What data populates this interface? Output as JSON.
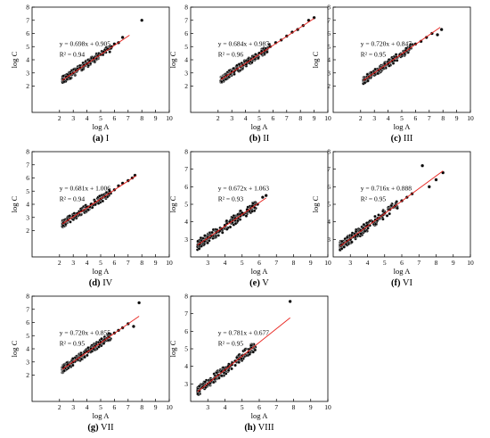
{
  "figure": {
    "background": "#ffffff",
    "point_color": "#000000",
    "fit_color": "#e8231e",
    "marker_color": "#c81e1e"
  },
  "chart_data": [
    {
      "type": "scatter",
      "panel_label": "(a) I",
      "label_id": "(a)",
      "label_text": " I",
      "xlabel": "log A",
      "ylabel": "log C",
      "xlim": [
        0,
        10
      ],
      "ylim": [
        0,
        8
      ],
      "xticks": [
        2,
        3,
        4,
        5,
        6,
        7,
        8,
        9,
        10
      ],
      "yticks": [
        2,
        3,
        4,
        5,
        6,
        7,
        8
      ],
      "equation": "y = 0.698x + 0.905",
      "r2": "R² = 0.94",
      "fit": {
        "slope": 0.698,
        "intercept": 0.905,
        "x_range": [
          2.2,
          7.1
        ]
      },
      "points": [
        [
          2.3,
          2.5
        ],
        [
          2.5,
          2.7
        ],
        [
          2.8,
          2.9
        ],
        [
          3.0,
          3.0
        ],
        [
          3.2,
          3.2
        ],
        [
          3.5,
          3.4
        ],
        [
          3.8,
          3.6
        ],
        [
          4.0,
          3.7
        ],
        [
          4.2,
          3.9
        ],
        [
          4.5,
          4.1
        ],
        [
          4.8,
          4.3
        ],
        [
          5.0,
          4.4
        ],
        [
          5.2,
          4.6
        ],
        [
          5.5,
          4.8
        ],
        [
          5.8,
          5.0
        ],
        [
          6.0,
          5.2
        ],
        [
          6.3,
          5.3
        ],
        [
          6.6,
          5.7
        ],
        [
          8.0,
          7.0
        ]
      ]
    },
    {
      "type": "scatter",
      "panel_label": "(b) II",
      "label_id": "(b)",
      "label_text": " II",
      "xlabel": "log A",
      "ylabel": "log C",
      "xlim": [
        0,
        10
      ],
      "ylim": [
        0,
        8
      ],
      "xticks": [
        2,
        3,
        4,
        5,
        6,
        7,
        8,
        9,
        10
      ],
      "yticks": [
        2,
        3,
        4,
        5,
        6,
        7,
        8
      ],
      "equation": "y = 0.684x + 0.987",
      "r2": "R² = 0.96",
      "fit": {
        "slope": 0.684,
        "intercept": 0.987,
        "x_range": [
          2.2,
          9.0
        ]
      },
      "points": [
        [
          2.3,
          2.6
        ],
        [
          2.6,
          2.8
        ],
        [
          3.0,
          3.1
        ],
        [
          3.4,
          3.3
        ],
        [
          3.8,
          3.6
        ],
        [
          4.2,
          3.9
        ],
        [
          4.6,
          4.2
        ],
        [
          5.0,
          4.5
        ],
        [
          5.4,
          4.7
        ],
        [
          5.8,
          5.0
        ],
        [
          6.2,
          5.3
        ],
        [
          6.6,
          5.5
        ],
        [
          7.0,
          5.8
        ],
        [
          7.4,
          6.1
        ],
        [
          7.8,
          6.3
        ],
        [
          8.2,
          6.6
        ],
        [
          8.6,
          7.0
        ],
        [
          9.0,
          7.2
        ]
      ]
    },
    {
      "type": "scatter",
      "panel_label": "(c) III",
      "label_id": "(c)",
      "label_text": " III",
      "xlabel": "log A",
      "ylabel": "log C",
      "xlim": [
        0,
        10
      ],
      "ylim": [
        0,
        8
      ],
      "xticks": [
        2,
        3,
        4,
        5,
        6,
        7,
        8,
        9,
        10
      ],
      "yticks": [
        2,
        3,
        4,
        5,
        6,
        7,
        8
      ],
      "equation": "y = 0.720x + 0.847",
      "r2": "R² = 0.95",
      "fit": {
        "slope": 0.72,
        "intercept": 0.847,
        "x_range": [
          2.2,
          7.8
        ]
      },
      "points": [
        [
          2.3,
          2.5
        ],
        [
          2.6,
          2.7
        ],
        [
          3.0,
          3.0
        ],
        [
          3.3,
          3.2
        ],
        [
          3.6,
          3.4
        ],
        [
          4.0,
          3.7
        ],
        [
          4.3,
          3.9
        ],
        [
          4.6,
          4.2
        ],
        [
          5.0,
          4.4
        ],
        [
          5.3,
          4.7
        ],
        [
          5.6,
          4.9
        ],
        [
          6.0,
          5.2
        ],
        [
          6.4,
          5.4
        ],
        [
          6.8,
          5.7
        ],
        [
          7.2,
          6.0
        ],
        [
          7.6,
          5.9
        ],
        [
          7.9,
          6.3
        ]
      ]
    },
    {
      "type": "scatter",
      "panel_label": "(d) IV",
      "label_id": "(d)",
      "label_text": " IV",
      "xlabel": "log A",
      "ylabel": "log C",
      "xlim": [
        0,
        10
      ],
      "ylim": [
        0,
        8
      ],
      "xticks": [
        2,
        3,
        4,
        5,
        6,
        7,
        8,
        9,
        10
      ],
      "yticks": [
        2,
        3,
        4,
        5,
        6,
        7,
        8
      ],
      "equation": "y = 0.681x + 1.006",
      "r2": "R² = 0.94",
      "fit": {
        "slope": 0.681,
        "intercept": 1.006,
        "x_range": [
          2.2,
          7.6
        ]
      },
      "points": [
        [
          2.3,
          2.6
        ],
        [
          2.6,
          2.8
        ],
        [
          3.0,
          3.1
        ],
        [
          3.3,
          3.3
        ],
        [
          3.6,
          3.5
        ],
        [
          4.0,
          3.8
        ],
        [
          4.3,
          4.0
        ],
        [
          4.6,
          4.2
        ],
        [
          5.0,
          4.4
        ],
        [
          5.3,
          4.6
        ],
        [
          5.6,
          4.8
        ],
        [
          6.0,
          5.1
        ],
        [
          6.3,
          5.4
        ],
        [
          6.6,
          5.6
        ],
        [
          7.0,
          5.8
        ],
        [
          7.3,
          6.0
        ],
        [
          7.5,
          6.2
        ]
      ]
    },
    {
      "type": "scatter",
      "panel_label": "(e) V",
      "label_id": "(e)",
      "label_text": " V",
      "xlabel": "log A",
      "ylabel": "log C",
      "xlim": [
        2,
        10
      ],
      "ylim": [
        2,
        8
      ],
      "xticks": [
        3,
        4,
        5,
        6,
        7,
        8,
        9,
        10
      ],
      "yticks": [
        3,
        4,
        5,
        6,
        7,
        8
      ],
      "equation": "y = 0.672x + 1.063",
      "r2": "R² = 0.93",
      "fit": {
        "slope": 0.672,
        "intercept": 1.063,
        "x_range": [
          2.4,
          6.4
        ]
      },
      "points": [
        [
          2.5,
          2.7
        ],
        [
          2.8,
          2.9
        ],
        [
          3.0,
          3.1
        ],
        [
          3.2,
          3.2
        ],
        [
          3.5,
          3.4
        ],
        [
          3.8,
          3.6
        ],
        [
          4.0,
          3.8
        ],
        [
          4.3,
          4.0
        ],
        [
          4.6,
          4.2
        ],
        [
          5.0,
          4.5
        ],
        [
          5.3,
          4.7
        ],
        [
          5.6,
          4.9
        ],
        [
          5.9,
          5.0
        ],
        [
          6.2,
          5.4
        ],
        [
          6.4,
          5.5
        ]
      ]
    },
    {
      "type": "scatter",
      "panel_label": "(f) VI",
      "label_id": "(f)",
      "label_text": " VI",
      "xlabel": "log A",
      "ylabel": "log C",
      "xlim": [
        2,
        10
      ],
      "ylim": [
        2,
        8
      ],
      "xticks": [
        3,
        4,
        5,
        6,
        7,
        8,
        9,
        10
      ],
      "yticks": [
        3,
        4,
        5,
        6,
        7,
        8
      ],
      "equation": "y = 0.716x + 0.888",
      "r2": "R² = 0.95",
      "fit": {
        "slope": 0.716,
        "intercept": 0.888,
        "x_range": [
          2.4,
          8.4
        ]
      },
      "points": [
        [
          2.5,
          2.7
        ],
        [
          2.8,
          2.9
        ],
        [
          3.0,
          3.0
        ],
        [
          3.3,
          3.2
        ],
        [
          3.6,
          3.5
        ],
        [
          4.0,
          3.8
        ],
        [
          4.3,
          4.0
        ],
        [
          4.6,
          4.2
        ],
        [
          5.0,
          4.5
        ],
        [
          5.3,
          4.7
        ],
        [
          5.6,
          4.9
        ],
        [
          6.0,
          5.2
        ],
        [
          6.3,
          5.4
        ],
        [
          6.6,
          5.6
        ],
        [
          7.2,
          7.2
        ],
        [
          7.6,
          6.0
        ],
        [
          8.0,
          6.4
        ],
        [
          8.4,
          6.8
        ]
      ]
    },
    {
      "type": "scatter",
      "panel_label": "(g) VII",
      "label_id": "(g)",
      "label_text": " VII",
      "xlabel": "log A",
      "ylabel": "log C",
      "xlim": [
        0,
        10
      ],
      "ylim": [
        0,
        8
      ],
      "xticks": [
        2,
        3,
        4,
        5,
        6,
        7,
        8,
        9,
        10
      ],
      "yticks": [
        2,
        3,
        4,
        5,
        6,
        7,
        8
      ],
      "equation": "y = 0.720x + 0.855",
      "r2": "R² = 0.95",
      "fit": {
        "slope": 0.72,
        "intercept": 0.855,
        "x_range": [
          2.2,
          7.8
        ]
      },
      "points": [
        [
          2.3,
          2.6
        ],
        [
          2.6,
          2.8
        ],
        [
          3.0,
          3.0
        ],
        [
          3.3,
          3.2
        ],
        [
          3.6,
          3.5
        ],
        [
          4.0,
          3.8
        ],
        [
          4.3,
          4.0
        ],
        [
          4.6,
          4.2
        ],
        [
          5.0,
          4.5
        ],
        [
          5.3,
          4.7
        ],
        [
          5.6,
          4.9
        ],
        [
          6.0,
          5.2
        ],
        [
          6.3,
          5.4
        ],
        [
          6.6,
          5.6
        ],
        [
          7.0,
          5.9
        ],
        [
          7.4,
          5.7
        ],
        [
          7.8,
          7.5
        ]
      ]
    },
    {
      "type": "scatter",
      "panel_label": "(h) VIII",
      "label_id": "(h)",
      "label_text": " VIII",
      "xlabel": "log A",
      "ylabel": "log C",
      "xlim": [
        2,
        10
      ],
      "ylim": [
        2,
        8
      ],
      "xticks": [
        3,
        4,
        5,
        6,
        7,
        8,
        9,
        10
      ],
      "yticks": [
        3,
        4,
        5,
        6,
        7,
        8
      ],
      "equation": "y = 0.781x + 0.677",
      "r2": "R² = 0.95",
      "fit": {
        "slope": 0.781,
        "intercept": 0.677,
        "x_range": [
          2.4,
          7.8
        ]
      },
      "points": [
        [
          2.5,
          2.6
        ],
        [
          2.7,
          2.8
        ],
        [
          3.0,
          3.0
        ],
        [
          3.2,
          3.2
        ],
        [
          3.4,
          3.3
        ],
        [
          3.6,
          3.5
        ],
        [
          3.8,
          3.7
        ],
        [
          4.0,
          3.8
        ],
        [
          4.2,
          4.0
        ],
        [
          4.4,
          4.1
        ],
        [
          4.6,
          4.3
        ],
        [
          4.8,
          4.4
        ],
        [
          5.0,
          4.6
        ],
        [
          7.8,
          7.7
        ]
      ]
    }
  ]
}
